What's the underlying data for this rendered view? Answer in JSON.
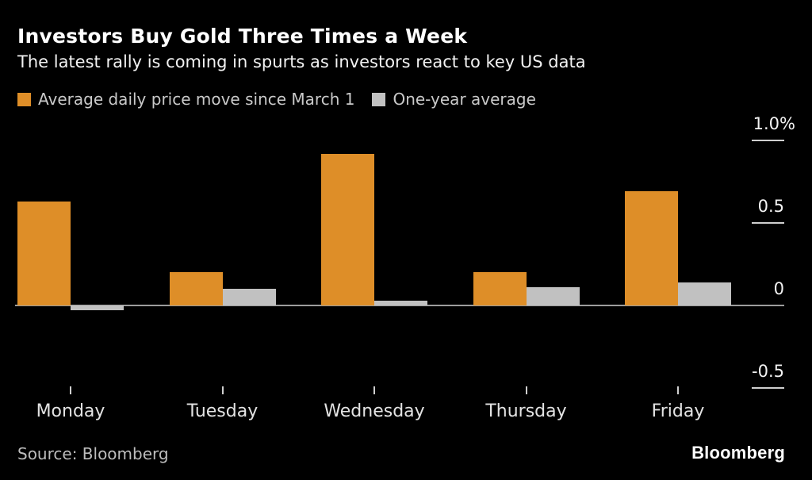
{
  "header": {
    "title": "Investors Buy Gold Three Times a Week",
    "subtitle": "The latest rally is coming in spurts as investors react to key US data"
  },
  "legend": {
    "items": [
      {
        "label": "Average daily price move since March 1",
        "color": "#DE8E28"
      },
      {
        "label": "One-year average",
        "color": "#C1C1C1"
      }
    ]
  },
  "chart_data": {
    "type": "bar",
    "title": "Investors Buy Gold Three Times a Week",
    "subtitle": "The latest rally is coming in spurts as investors react to key US data",
    "categories": [
      "Monday",
      "Tuesday",
      "Wednesday",
      "Thursday",
      "Friday"
    ],
    "series": [
      {
        "name": "Average daily price move since March 1",
        "color": "#DE8E28",
        "values": [
          0.63,
          0.2,
          0.92,
          0.2,
          0.69
        ]
      },
      {
        "name": "One-year average",
        "color": "#C1C1C1",
        "values": [
          -0.03,
          0.1,
          0.03,
          0.11,
          0.14
        ]
      }
    ],
    "xlabel": "",
    "ylabel": "%",
    "ylim": [
      -0.7,
      1.15
    ],
    "yticks": [
      {
        "value": 1.0,
        "label": "1.0%"
      },
      {
        "value": 0.5,
        "label": "0.5"
      },
      {
        "value": 0,
        "label": "0"
      },
      {
        "value": -0.5,
        "label": "-0.5"
      }
    ],
    "grid": "right-side tick segments only, full-width zero baseline",
    "legend_position": "top-left"
  },
  "colors": {
    "background": "#000000",
    "bar_current": "#DE8E28",
    "bar_average": "#C1C1C1",
    "axis_line": "#9C9C9C",
    "tick": "#CFCFCF",
    "title_text": "#FFFFFF",
    "axis_text": "#F2F2F2"
  },
  "footer": {
    "source": "Source: Bloomberg",
    "logo": "Bloomberg"
  }
}
